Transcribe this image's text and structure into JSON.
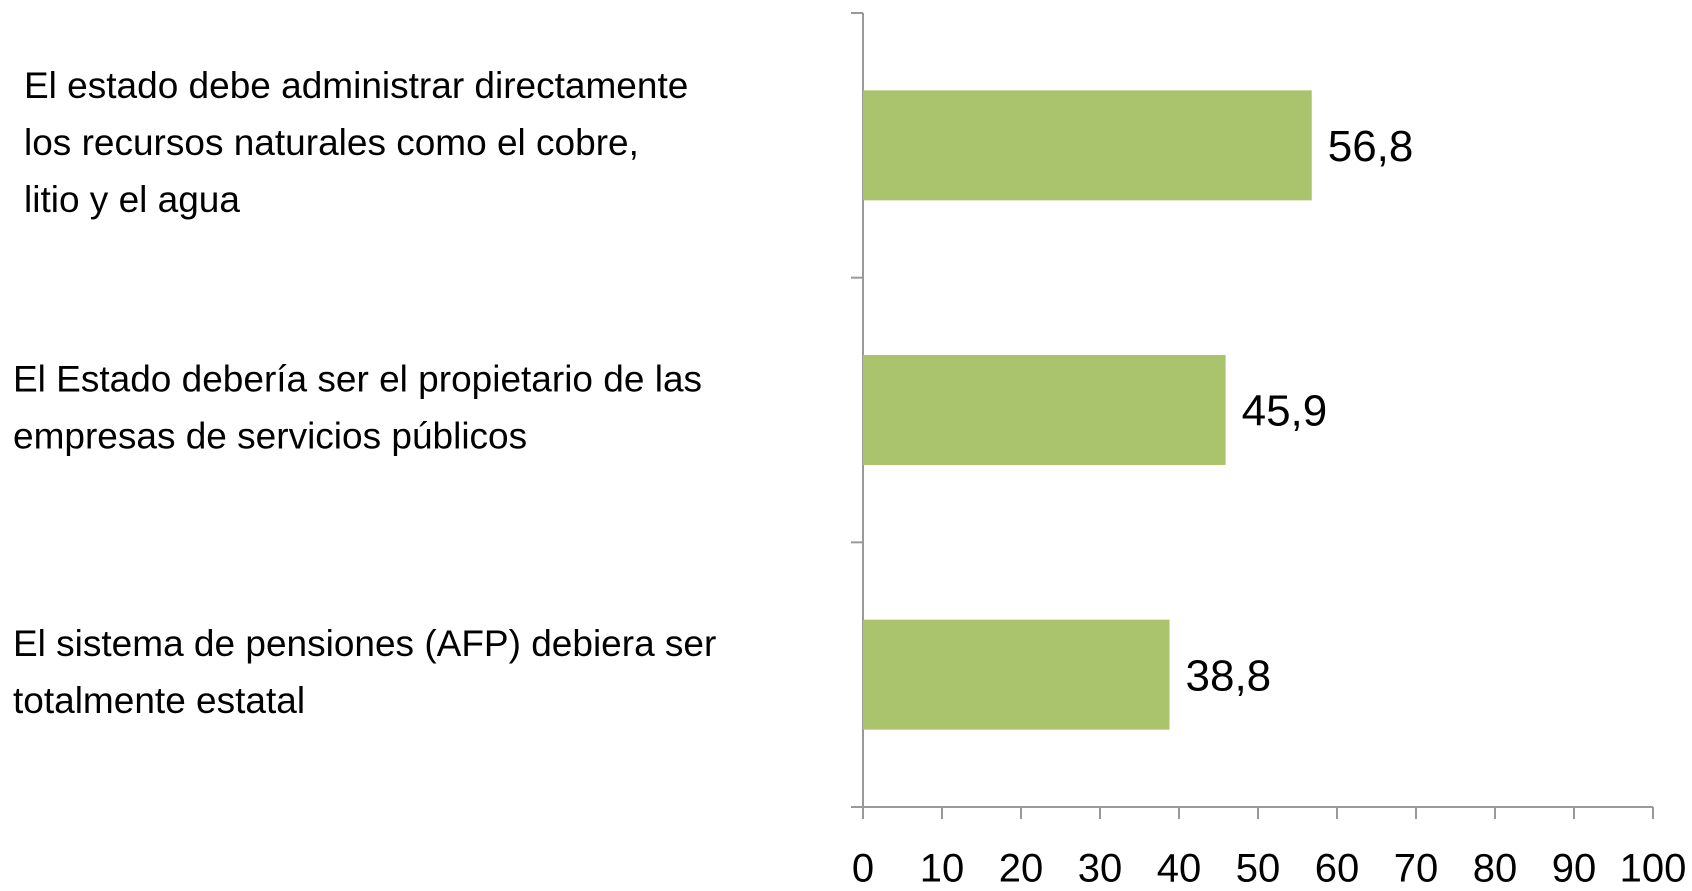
{
  "chart_data": {
    "type": "barh",
    "categories": [
      [
        "El estado debe administrar directamente",
        "los recursos naturales como el cobre,",
        "litio y el agua"
      ],
      [
        "El Estado debería ser el propietario de las",
        "empresas de servicios públicos"
      ],
      [
        "El sistema de pensiones (AFP) debiera ser",
        "totalmente estatal"
      ]
    ],
    "values": [
      56.8,
      45.9,
      38.8
    ],
    "value_labels": [
      "56,8",
      "45,9",
      "38,8"
    ],
    "color": "#a9c46c",
    "xlim": [
      0,
      100
    ],
    "xticks": [
      0,
      10,
      20,
      30,
      40,
      50,
      60,
      70,
      80,
      90,
      100
    ]
  }
}
